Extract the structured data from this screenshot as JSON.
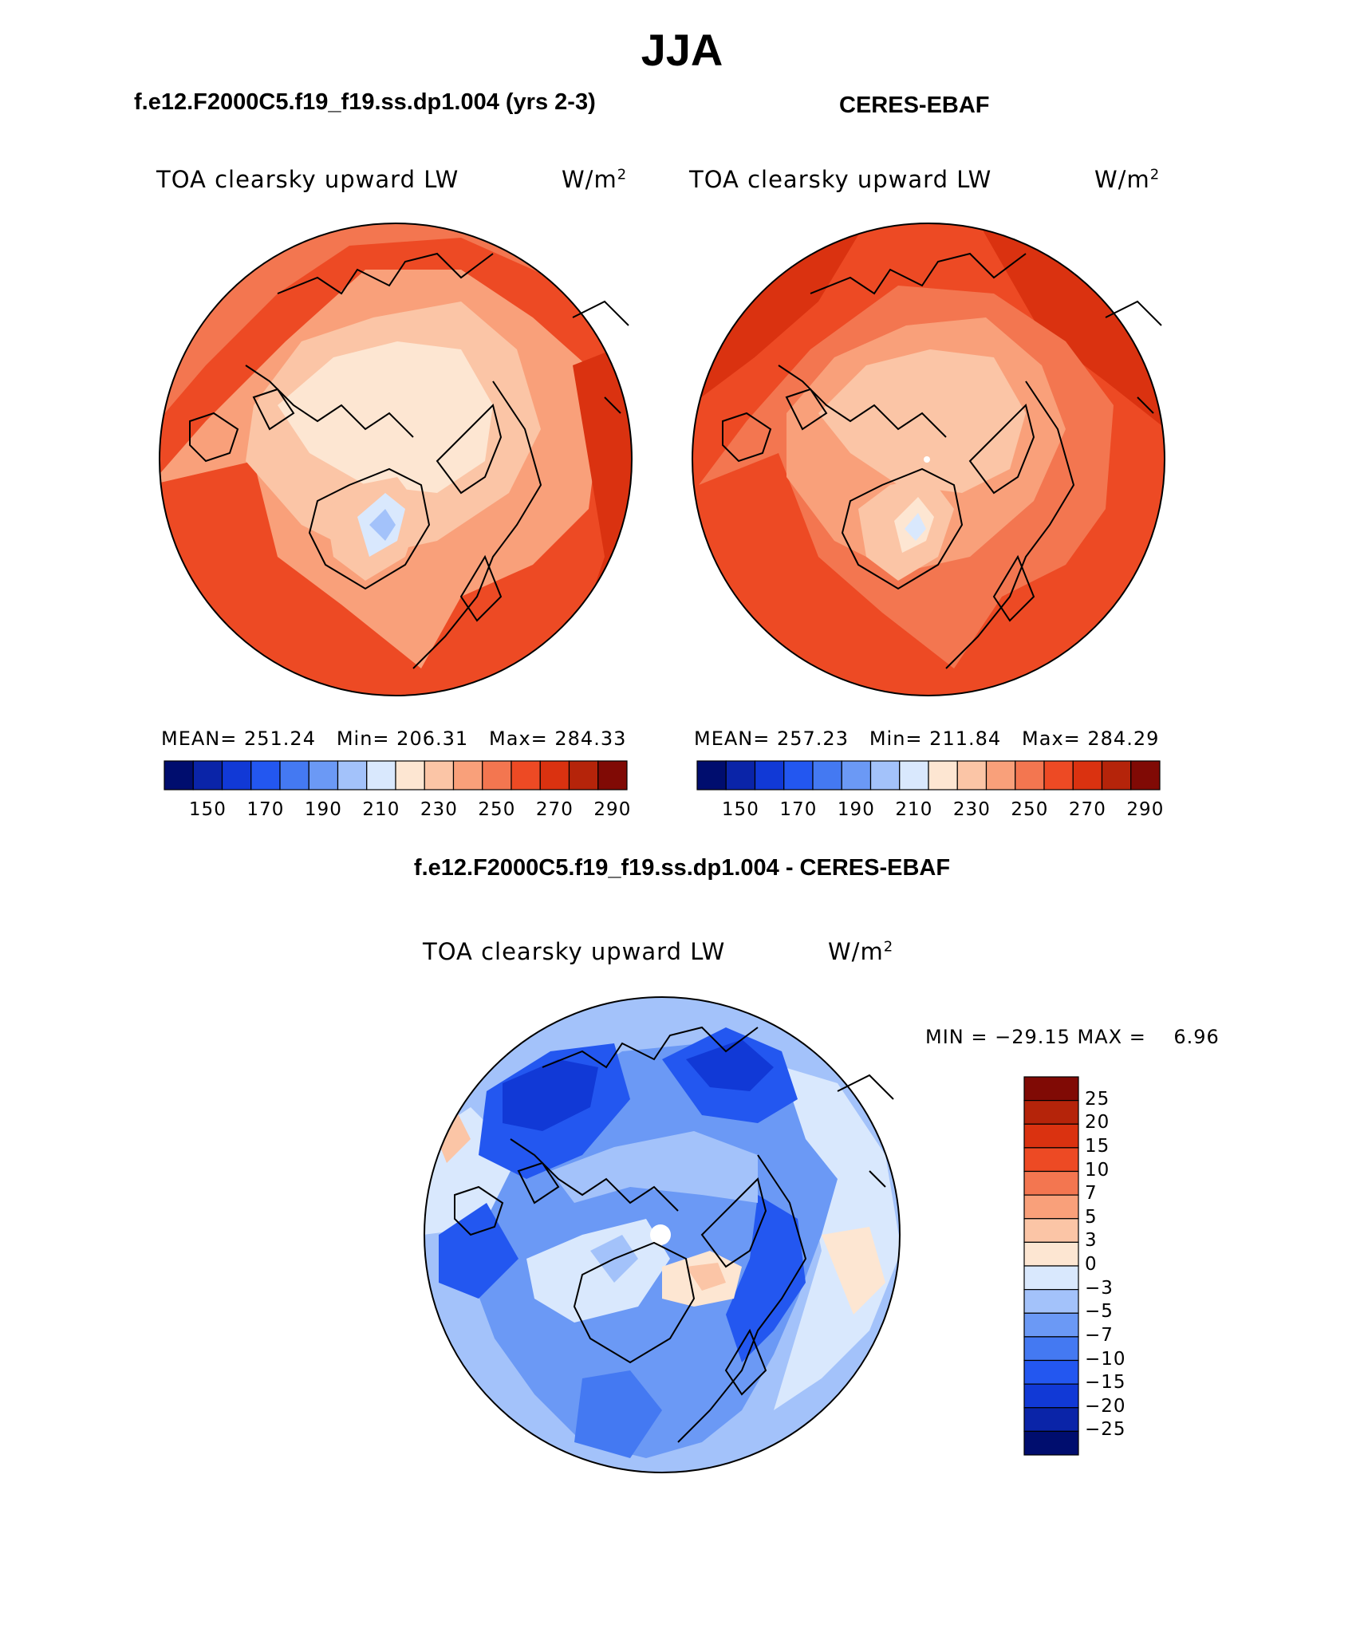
{
  "title": "JJA",
  "panels": {
    "model": {
      "header": "f.e12.F2000C5.f19_f19.ss.dp1.004 (yrs 2-3)",
      "variable": "TOA clearsky upward LW",
      "units_base": "W/m",
      "units_exp": "2",
      "stats": "MEAN= 251.24   Min= 206.31   Max= 284.33"
    },
    "obs": {
      "header": "CERES-EBAF",
      "variable": "TOA clearsky upward LW",
      "units_base": "W/m",
      "units_exp": "2",
      "stats": "MEAN= 257.23   Min= 211.84   Max= 284.29"
    },
    "diff": {
      "header": "f.e12.F2000C5.f19_f19.ss.dp1.004 - CERES-EBAF",
      "variable": "TOA clearsky upward LW",
      "units_base": "W/m",
      "units_exp": "2",
      "stats": "MIN = −29.15 MAX =    6.96"
    }
  },
  "colorbar_abs": {
    "tick_labels": [
      "150",
      "170",
      "190",
      "210",
      "230",
      "250",
      "270",
      "290"
    ],
    "colors": [
      "#000d6e",
      "#0a24a8",
      "#1139d6",
      "#2357f0",
      "#4479f2",
      "#6b99f5",
      "#a3c2fa",
      "#d9e8fd",
      "#fde6d2",
      "#fbc5a6",
      "#f9a07a",
      "#f37650",
      "#ed4a24",
      "#da3210",
      "#b5240a",
      "#800a05"
    ]
  },
  "colorbar_diff": {
    "tick_labels": [
      "25",
      "20",
      "15",
      "10",
      "7",
      "5",
      "3",
      "0",
      "−3",
      "−5",
      "−7",
      "−10",
      "−15",
      "−20",
      "−25"
    ],
    "colors": [
      "#800a05",
      "#b5240a",
      "#da3210",
      "#ed4a24",
      "#f37650",
      "#f9a07a",
      "#fbc5a6",
      "#fde6d2",
      "#d9e8fd",
      "#a3c2fa",
      "#6b99f5",
      "#4479f2",
      "#2357f0",
      "#1139d6",
      "#0a24a8",
      "#000d6e"
    ]
  },
  "chart_data": [
    {
      "type": "heatmap",
      "subtitle": "f.e12.F2000C5.f19_f19.ss.dp1.004 (yrs 2-3)",
      "projection": "polar stereographic, North Pole",
      "variable": "TOA clearsky upward LW",
      "units": "W/m2",
      "mean": 251.24,
      "min": 206.31,
      "max": 284.33,
      "levels": [
        150,
        160,
        170,
        180,
        190,
        200,
        210,
        220,
        230,
        240,
        250,
        260,
        270,
        280,
        290
      ]
    },
    {
      "type": "heatmap",
      "subtitle": "CERES-EBAF",
      "projection": "polar stereographic, North Pole",
      "variable": "TOA clearsky upward LW",
      "units": "W/m2",
      "mean": 257.23,
      "min": 211.84,
      "max": 284.29,
      "levels": [
        150,
        160,
        170,
        180,
        190,
        200,
        210,
        220,
        230,
        240,
        250,
        260,
        270,
        280,
        290
      ]
    },
    {
      "type": "heatmap",
      "subtitle": "f.e12.F2000C5.f19_f19.ss.dp1.004 - CERES-EBAF",
      "projection": "polar stereographic, North Pole",
      "variable": "TOA clearsky upward LW",
      "units": "W/m2",
      "min": -29.15,
      "max": 6.96,
      "levels": [
        -25,
        -20,
        -15,
        -10,
        -7,
        -5,
        -3,
        0,
        3,
        5,
        7,
        10,
        15,
        20,
        25
      ]
    }
  ]
}
